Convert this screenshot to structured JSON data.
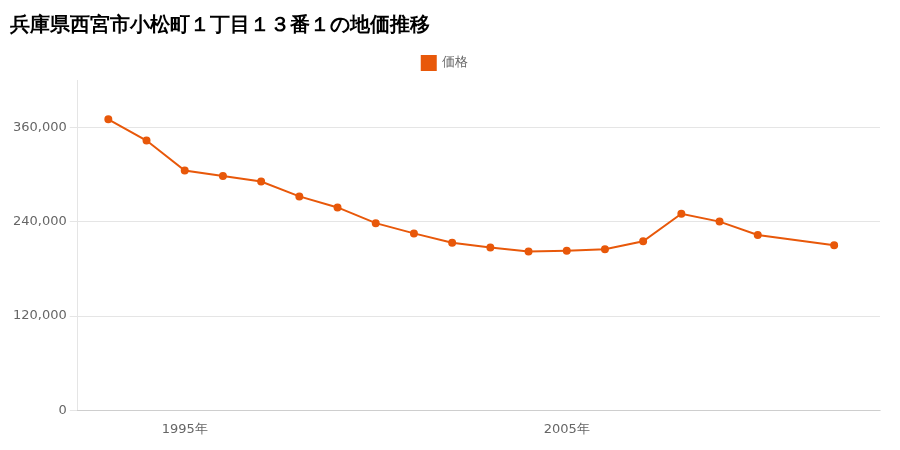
{
  "chart_data": {
    "type": "line",
    "title": "兵庫県西宮市小松町１丁目１３番１の地価推移",
    "x": [
      1993,
      1994,
      1995,
      1996,
      1997,
      1998,
      1999,
      2000,
      2001,
      2002,
      2003,
      2004,
      2005,
      2006,
      2007,
      2008,
      2009,
      2010,
      2012
    ],
    "series": [
      {
        "name": "価格",
        "color": "#e8580a",
        "values": [
          370000,
          343000,
          305000,
          298000,
          291000,
          272000,
          258000,
          238000,
          225000,
          213000,
          207000,
          202000,
          203000,
          205000,
          215000,
          250000,
          240000,
          223000,
          210000
        ]
      }
    ],
    "xlim": [
      1992.2,
      2013.2
    ],
    "xticks": [
      {
        "value": 1995,
        "label": "1995年"
      },
      {
        "value": 2005,
        "label": "2005年"
      }
    ],
    "ylim": [
      0,
      420000
    ],
    "yticks": [
      0,
      {
        "value": 120000,
        "label": "120,000"
      },
      {
        "value": 240000,
        "label": "240,000"
      },
      {
        "value": 360000,
        "label": "360,000"
      }
    ],
    "grid": true,
    "legend": "top",
    "marker": "circle"
  }
}
